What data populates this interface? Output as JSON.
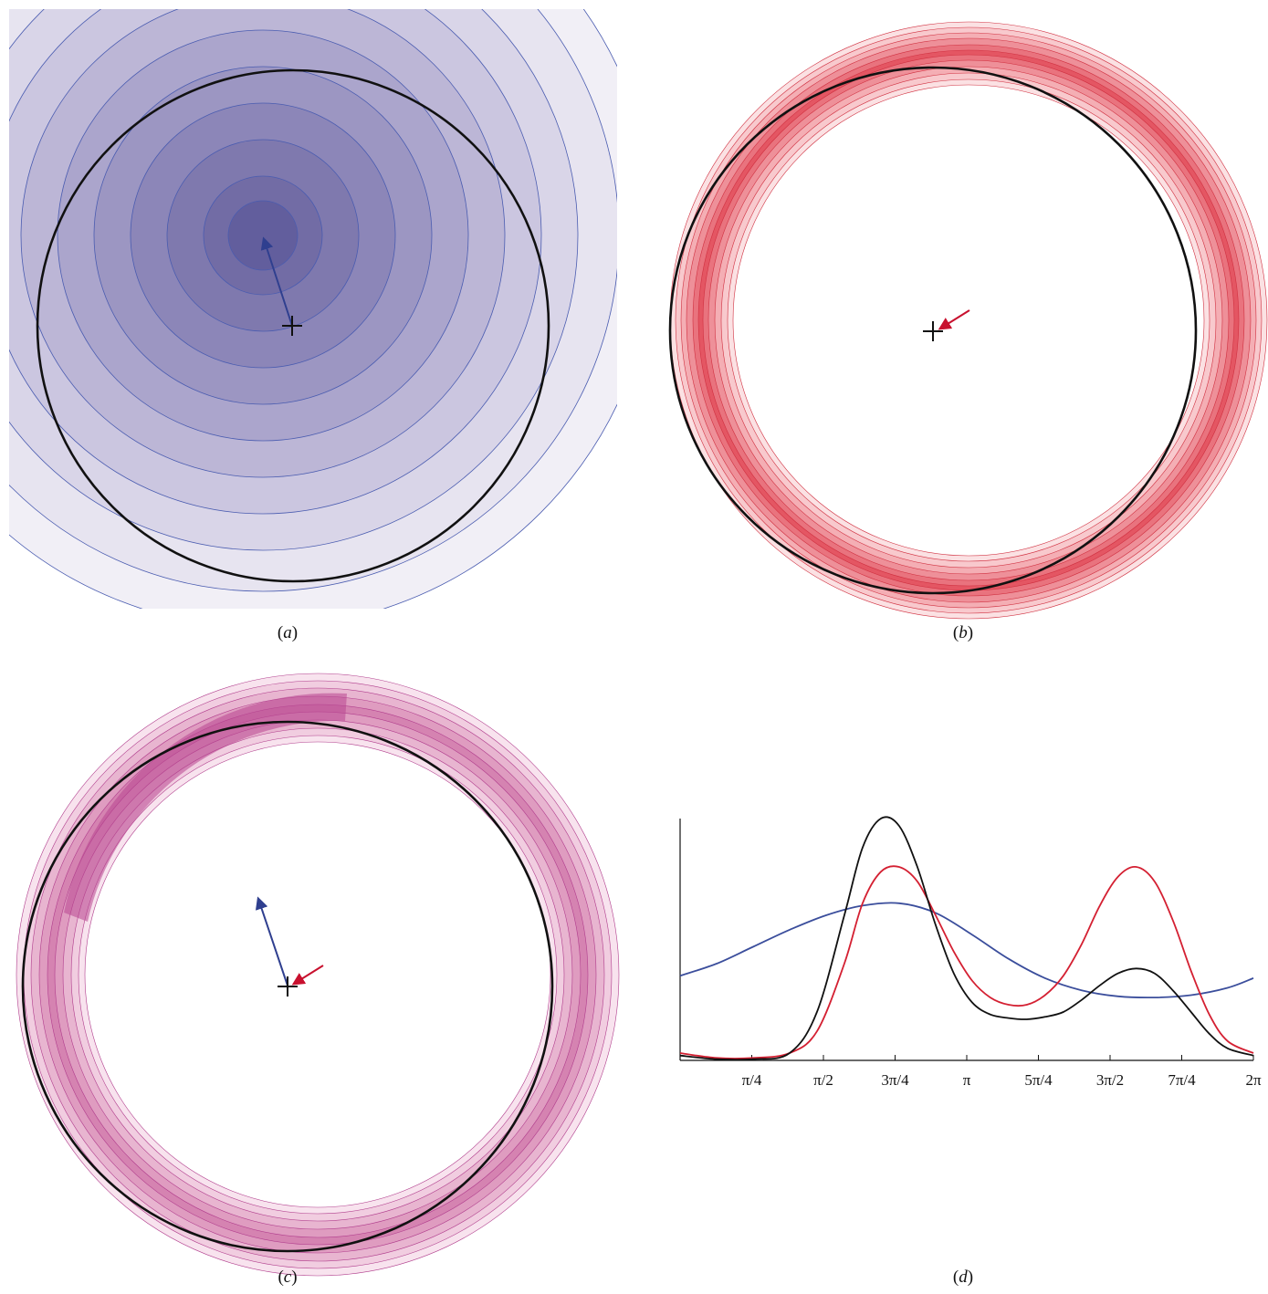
{
  "panels": [
    {
      "id": "a",
      "letter": "a",
      "open": "(",
      "close": ")"
    },
    {
      "id": "b",
      "letter": "b",
      "open": "(",
      "close": ")"
    },
    {
      "id": "c",
      "letter": "c",
      "open": "(",
      "close": ")"
    },
    {
      "id": "d",
      "letter": "d",
      "open": "(",
      "close": ")"
    }
  ],
  "colors": {
    "blue_line": "#3b4e9c",
    "red_line": "#d42032",
    "black_line": "#111111",
    "blue_fill": "#62609f",
    "red_fill": "#e23c48",
    "magenta_fill": "#b03c8c"
  },
  "chart_data": [
    {
      "type": "contour",
      "panel": "a",
      "description_colors": "blue contour bands centred off-centre with blue arrow from cross",
      "contour_levels": 10
    },
    {
      "type": "contour",
      "panel": "b",
      "description_colors": "red annular band with small red arrow at cross",
      "contour_levels": 8
    },
    {
      "type": "contour",
      "panel": "c",
      "description_colors": "magenta annular band (product) with blue and red arrows at cross",
      "contour_levels": 8
    },
    {
      "type": "line",
      "panel": "d",
      "xlim": [
        0,
        6.2832
      ],
      "ylim": [
        0,
        1.0
      ],
      "x_ticks": [
        {
          "value": 0.7854,
          "label": "π/4"
        },
        {
          "value": 1.5708,
          "label": "π/2"
        },
        {
          "value": 2.3562,
          "label": "3π/4"
        },
        {
          "value": 3.1416,
          "label": "π"
        },
        {
          "value": 3.927,
          "label": "5π/4"
        },
        {
          "value": 4.7124,
          "label": "3π/2"
        },
        {
          "value": 5.4978,
          "label": "7π/4"
        },
        {
          "value": 6.2832,
          "label": "2π"
        }
      ],
      "series": [
        {
          "color": "blue",
          "values_desc": "broad peak",
          "x": [
            0.0,
            0.4,
            0.8,
            1.2,
            1.6,
            2.0,
            2.4,
            2.8,
            3.2,
            3.6,
            4.0,
            4.4,
            4.8,
            5.2,
            5.6,
            6.0,
            6.2832
          ],
          "y": [
            0.35,
            0.4,
            0.47,
            0.54,
            0.6,
            0.64,
            0.65,
            0.61,
            0.52,
            0.42,
            0.34,
            0.29,
            0.265,
            0.26,
            0.27,
            0.3,
            0.34
          ]
        },
        {
          "color": "red",
          "x": [
            0.0,
            0.4,
            0.8,
            1.2,
            1.5,
            1.8,
            2.0,
            2.2,
            2.4,
            2.6,
            2.8,
            3.0,
            3.2,
            3.4,
            3.6,
            3.8,
            4.0,
            4.2,
            4.4,
            4.6,
            4.8,
            5.0,
            5.2,
            5.4,
            5.6,
            5.8,
            6.0,
            6.2832
          ],
          "y": [
            0.03,
            0.01,
            0.01,
            0.03,
            0.12,
            0.4,
            0.65,
            0.78,
            0.8,
            0.74,
            0.6,
            0.45,
            0.33,
            0.26,
            0.23,
            0.23,
            0.27,
            0.35,
            0.48,
            0.64,
            0.76,
            0.8,
            0.74,
            0.58,
            0.37,
            0.19,
            0.08,
            0.03
          ]
        },
        {
          "color": "black",
          "x": [
            0.0,
            0.4,
            0.8,
            1.2,
            1.5,
            1.8,
            2.0,
            2.2,
            2.4,
            2.6,
            2.8,
            3.0,
            3.2,
            3.4,
            3.6,
            3.8,
            4.0,
            4.2,
            4.4,
            4.6,
            4.8,
            5.0,
            5.2,
            5.4,
            5.6,
            5.8,
            6.0,
            6.2832
          ],
          "y": [
            0.02,
            0.005,
            0.005,
            0.03,
            0.2,
            0.6,
            0.88,
            1.0,
            0.97,
            0.8,
            0.56,
            0.36,
            0.24,
            0.19,
            0.175,
            0.17,
            0.18,
            0.2,
            0.25,
            0.31,
            0.36,
            0.38,
            0.36,
            0.29,
            0.2,
            0.11,
            0.05,
            0.02
          ]
        }
      ]
    }
  ]
}
